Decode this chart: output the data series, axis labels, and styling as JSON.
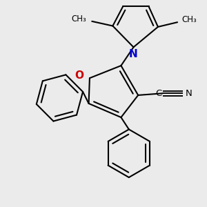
{
  "bg_color": "#ebebeb",
  "bond_color": "#000000",
  "N_color": "#0000cc",
  "O_color": "#cc0000",
  "line_width": 1.5,
  "figsize": [
    3.0,
    3.0
  ],
  "dpi": 100,
  "xlim": [
    -2.2,
    2.2
  ],
  "ylim": [
    -2.2,
    2.2
  ]
}
